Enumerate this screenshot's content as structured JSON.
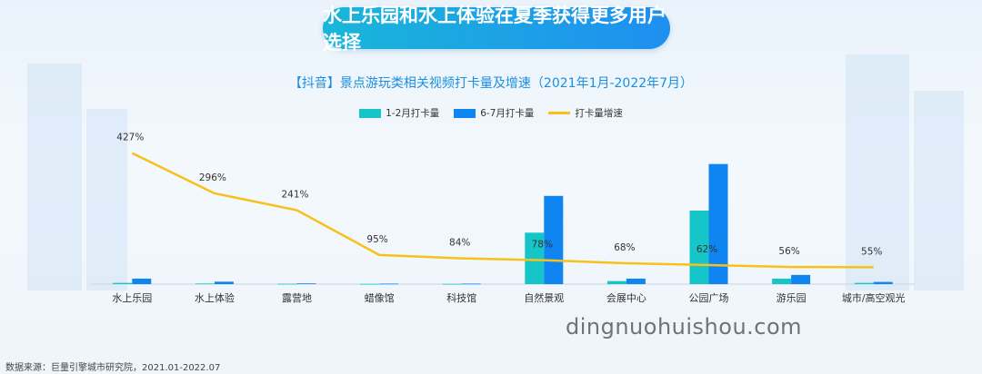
{
  "headline": "水上乐园和水上体验在夏季获得更多用户选择",
  "source": "数据来源：巨量引擎城市研究院，2021.01-2022.07",
  "watermark": "dingnuohuishou.com",
  "chart_data": {
    "type": "bar",
    "title": "【抖音】景点游玩类相关视频打卡量及增速（2021年1月-2022年7月）",
    "categories": [
      "水上乐园",
      "水上体验",
      "露营地",
      "蜡像馆",
      "科技馆",
      "自然景观",
      "会展中心",
      "公园广场",
      "游乐园",
      "城市/高空观光"
    ],
    "series": [
      {
        "name": "1-2月打卡量",
        "kind": "bar",
        "color": "#16c5c8",
        "values": [
          1,
          0.5,
          0.3,
          0.2,
          0.2,
          42,
          2.5,
          60,
          4.5,
          1
        ]
      },
      {
        "name": "6-7月打卡量",
        "kind": "bar",
        "color": "#0e85f0",
        "values": [
          4.5,
          2,
          0.6,
          0.4,
          0.4,
          72,
          4.5,
          98,
          7.5,
          1.8
        ]
      },
      {
        "name": "打卡量增速",
        "kind": "line",
        "color": "#f6c11a",
        "values": [
          427,
          296,
          241,
          95,
          84,
          78,
          68,
          62,
          56,
          55
        ],
        "labels": [
          "427%",
          "296%",
          "241%",
          "95%",
          "84%",
          "78%",
          "68%",
          "62%",
          "56%",
          "55%"
        ]
      }
    ],
    "ylim": [
      0,
      100
    ],
    "y2lim": [
      0,
      510
    ],
    "legend_position": "top-center",
    "grid": false
  }
}
